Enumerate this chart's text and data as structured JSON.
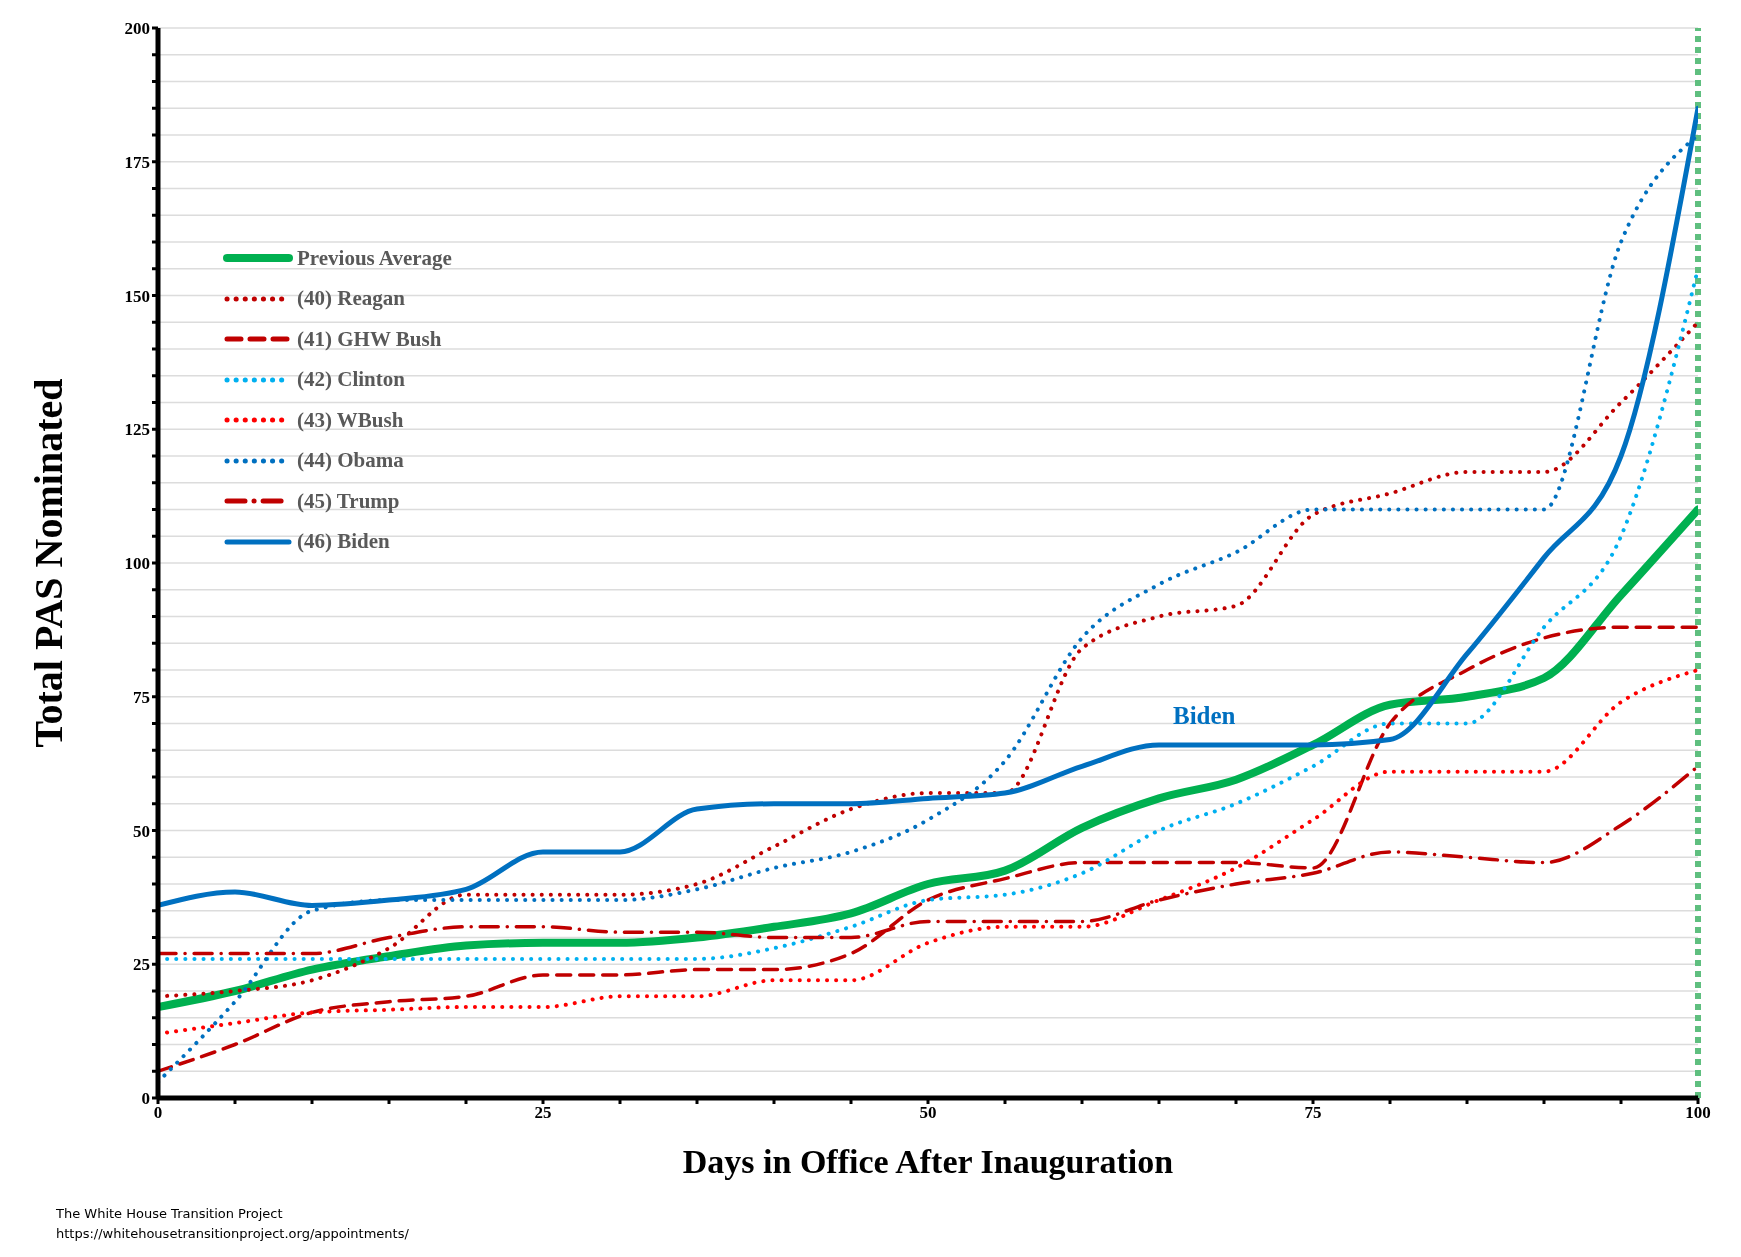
{
  "chart_data": {
    "type": "line",
    "xlabel": "Days in Office After Inauguration",
    "ylabel": "Total PAS Nominated",
    "x": [
      0,
      5,
      10,
      15,
      20,
      25,
      30,
      35,
      40,
      45,
      50,
      55,
      60,
      65,
      70,
      75,
      80,
      85,
      90,
      95,
      100
    ],
    "xlim": [
      0,
      100
    ],
    "ylim": [
      0,
      200
    ],
    "xticks": [
      0,
      {
        "value": 5,
        "label": null
      },
      {
        "value": 10,
        "label": null
      },
      {
        "value": 15,
        "label": null
      },
      {
        "value": 20,
        "label": null
      },
      25,
      {
        "value": 30,
        "label": null
      },
      {
        "value": 35,
        "label": null
      },
      {
        "value": 40,
        "label": null
      },
      {
        "value": 45,
        "label": null
      },
      50,
      {
        "value": 55,
        "label": null
      },
      {
        "value": 60,
        "label": null
      },
      {
        "value": 65,
        "label": null
      },
      {
        "value": 70,
        "label": null
      },
      75,
      {
        "value": 80,
        "label": null
      },
      {
        "value": 85,
        "label": null
      },
      {
        "value": 90,
        "label": null
      },
      {
        "value": 95,
        "label": null
      },
      100
    ],
    "yticks": [
      0,
      {
        "value": 5,
        "label": null
      },
      {
        "value": 10,
        "label": null
      },
      {
        "value": 15,
        "label": null
      },
      {
        "value": 20,
        "label": null
      },
      25,
      {
        "value": 30,
        "label": null
      },
      {
        "value": 35,
        "label": null
      },
      {
        "value": 40,
        "label": null
      },
      {
        "value": 45,
        "label": null
      },
      50,
      {
        "value": 55,
        "label": null
      },
      {
        "value": 60,
        "label": null
      },
      {
        "value": 65,
        "label": null
      },
      {
        "value": 70,
        "label": null
      },
      75,
      {
        "value": 80,
        "label": null
      },
      {
        "value": 85,
        "label": null
      },
      {
        "value": 90,
        "label": null
      },
      {
        "value": 95,
        "label": null
      },
      100,
      {
        "value": 105,
        "label": null
      },
      {
        "value": 110,
        "label": null
      },
      {
        "value": 115,
        "label": null
      },
      {
        "value": 120,
        "label": null
      },
      125,
      {
        "value": 130,
        "label": null
      },
      {
        "value": 135,
        "label": null
      },
      {
        "value": 140,
        "label": null
      },
      {
        "value": 145,
        "label": null
      },
      150,
      {
        "value": 155,
        "label": null
      },
      {
        "value": 160,
        "label": null
      },
      {
        "value": 165,
        "label": null
      },
      {
        "value": 170,
        "label": null
      },
      175,
      {
        "value": 180,
        "label": null
      },
      {
        "value": 185,
        "label": null
      },
      {
        "value": 190,
        "label": null
      },
      {
        "value": 195,
        "label": null
      },
      200
    ],
    "grid": "y",
    "legend": "top left",
    "marker": "none",
    "series": [
      {
        "name": "Previous Average",
        "color": "#00b050",
        "line_style": "solid",
        "values": [
          17,
          20,
          24,
          26.5,
          28.5,
          29,
          29,
          30,
          32,
          34.5,
          40,
          42.5,
          50.5,
          56,
          59.5,
          66,
          73.5,
          75,
          78.5,
          94,
          110
        ]
      },
      {
        "name": "(40) Reagan",
        "color": "#c00000",
        "line_style": "dotted",
        "values": [
          19,
          20,
          22,
          28,
          38,
          38,
          38,
          40,
          47,
          54,
          57,
          57,
          84,
          90,
          92,
          109,
          113,
          117,
          117,
          130,
          145
        ]
      },
      {
        "name": "(41) GHW Bush",
        "color": "#c00000",
        "line_style": "dashed",
        "values": [
          5,
          10,
          16,
          18,
          19,
          23,
          23,
          24,
          24,
          27,
          37,
          41,
          44,
          44,
          44,
          43,
          70,
          80,
          86,
          88,
          88
        ]
      },
      {
        "name": "(42) Clinton",
        "color": "#00b0f0",
        "line_style": "dotted",
        "values": [
          26,
          26,
          26,
          26,
          26,
          26,
          26,
          26,
          28,
          32,
          37,
          38,
          42,
          50,
          55,
          62,
          70,
          70,
          88,
          105,
          155
        ]
      },
      {
        "name": "(43) WBush",
        "color": "#ff0000",
        "line_style": "dotted",
        "values": [
          12,
          14,
          16,
          16.5,
          17,
          17,
          19,
          19,
          22,
          22,
          29,
          32,
          32,
          37,
          43,
          52,
          61,
          61,
          61,
          74,
          80
        ]
      },
      {
        "name": "(44) Obama",
        "color": "#0070c0",
        "line_style": "dotted",
        "values": [
          3,
          18,
          35,
          37,
          37,
          37,
          37,
          39,
          43,
          46,
          52,
          63,
          86,
          96,
          102,
          110,
          110,
          110,
          110,
          160,
          180
        ]
      },
      {
        "name": "(45) Trump",
        "color": "#c00000",
        "line_style": "dashdot",
        "values": [
          27,
          27,
          27,
          30,
          32,
          32,
          31,
          31,
          30,
          30,
          33,
          33,
          33,
          37,
          40,
          42,
          46,
          45,
          44,
          51,
          62
        ]
      },
      {
        "name": "(46) Biden",
        "color": "#0070c0",
        "line_style": "solid",
        "values": [
          36,
          38.5,
          36,
          37,
          39,
          46,
          46,
          54,
          55,
          55,
          56,
          57,
          62,
          66,
          66,
          66,
          67,
          83,
          101,
          120,
          185
        ]
      }
    ],
    "ref_lines": [
      {
        "axis": "x",
        "value": 100,
        "label": null,
        "color": "#5fbf7f",
        "line_style": "dotted"
      }
    ],
    "annotations": [
      "Biden",
      "The White House Transition Project",
      "https://whitehousetransitionproject.org/appointments/"
    ]
  }
}
